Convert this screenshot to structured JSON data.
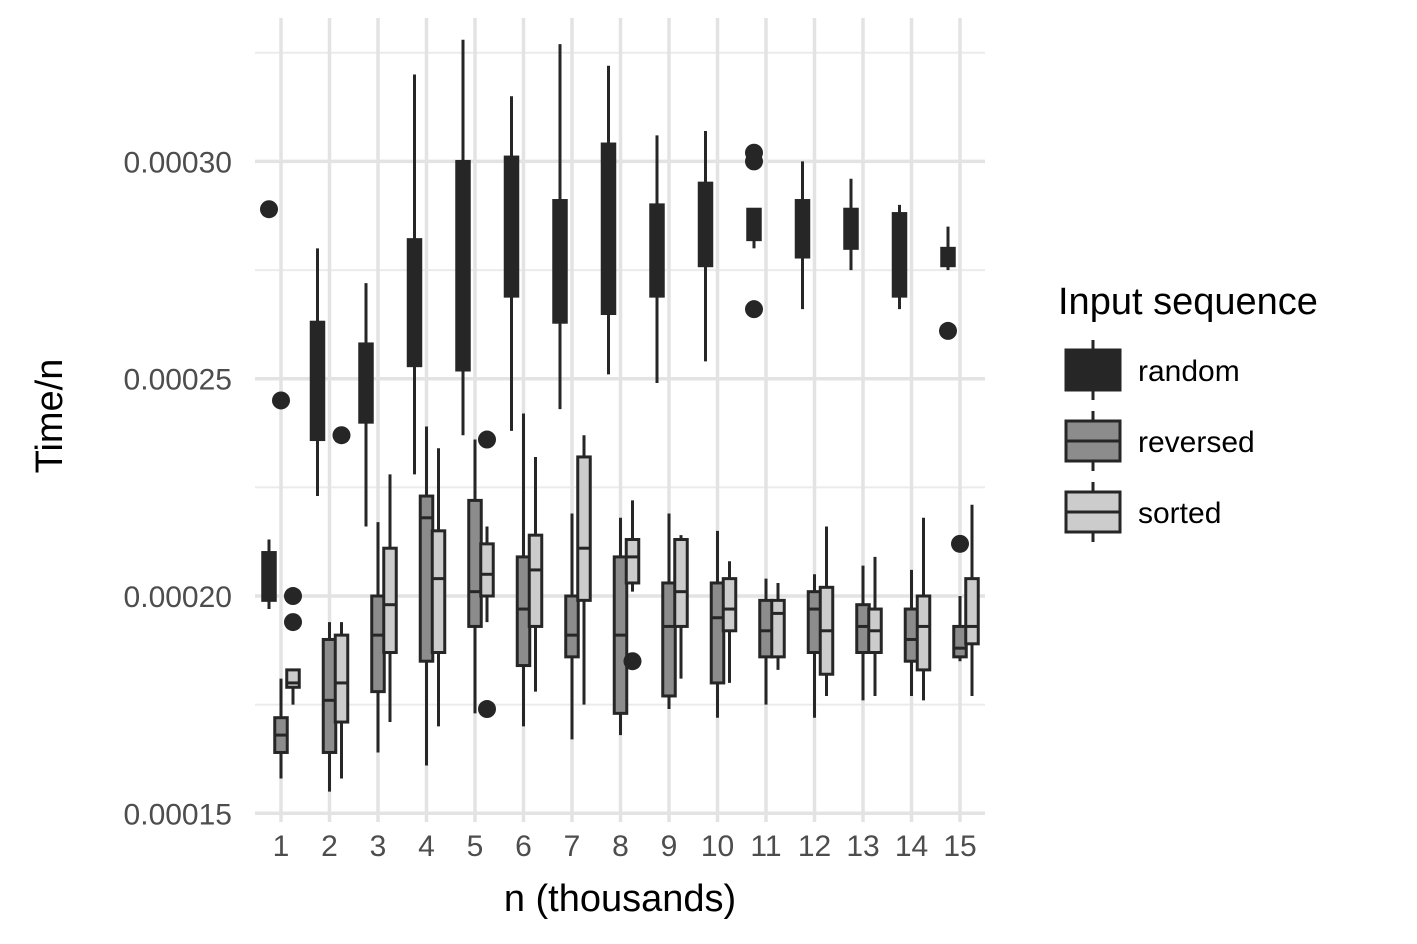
{
  "chart_data": {
    "type": "boxplot",
    "xlabel": "n (thousands)",
    "ylabel": "Time/n",
    "categories": [
      "1",
      "2",
      "3",
      "4",
      "5",
      "6",
      "7",
      "8",
      "9",
      "10",
      "11",
      "12",
      "13",
      "14",
      "15"
    ],
    "ylim": [
      0.000148,
      0.000333
    ],
    "yticks": [
      0.00015,
      0.0002,
      0.00025,
      0.0003
    ],
    "ytick_labels": [
      "0.00015",
      "0.00020",
      "0.00025",
      "0.00030"
    ],
    "grid": true,
    "legend": {
      "title": "Input sequence",
      "position": "right"
    },
    "series": [
      {
        "name": "random",
        "color": "#262626",
        "boxes": [
          {
            "lower_whisker": 0.000197,
            "q1": 0.000199,
            "median": 0.000205,
            "q3": 0.00021,
            "upper_whisker": 0.000213,
            "outliers": [
              0.000289
            ]
          },
          {
            "lower_whisker": 0.000223,
            "q1": 0.000236,
            "median": 0.000255,
            "q3": 0.000263,
            "upper_whisker": 0.00028,
            "outliers": []
          },
          {
            "lower_whisker": 0.000216,
            "q1": 0.00024,
            "median": 0.000251,
            "q3": 0.000258,
            "upper_whisker": 0.000272,
            "outliers": []
          },
          {
            "lower_whisker": 0.000228,
            "q1": 0.000253,
            "median": 0.000269,
            "q3": 0.000282,
            "upper_whisker": 0.00032,
            "outliers": []
          },
          {
            "lower_whisker": 0.000237,
            "q1": 0.000252,
            "median": 0.000276,
            "q3": 0.0003,
            "upper_whisker": 0.000328,
            "outliers": []
          },
          {
            "lower_whisker": 0.000238,
            "q1": 0.000269,
            "median": 0.000283,
            "q3": 0.000301,
            "upper_whisker": 0.000315,
            "outliers": []
          },
          {
            "lower_whisker": 0.000243,
            "q1": 0.000263,
            "median": 0.00028,
            "q3": 0.000291,
            "upper_whisker": 0.000327,
            "outliers": []
          },
          {
            "lower_whisker": 0.000251,
            "q1": 0.000265,
            "median": 0.000292,
            "q3": 0.000304,
            "upper_whisker": 0.000322,
            "outliers": []
          },
          {
            "lower_whisker": 0.000249,
            "q1": 0.000269,
            "median": 0.000277,
            "q3": 0.00029,
            "upper_whisker": 0.000306,
            "outliers": []
          },
          {
            "lower_whisker": 0.000254,
            "q1": 0.000276,
            "median": 0.000285,
            "q3": 0.000295,
            "upper_whisker": 0.000307,
            "outliers": []
          },
          {
            "lower_whisker": 0.00028,
            "q1": 0.000282,
            "median": 0.000286,
            "q3": 0.000289,
            "upper_whisker": 0.000289,
            "outliers": [
              0.000302,
              0.0003,
              0.000266
            ]
          },
          {
            "lower_whisker": 0.000266,
            "q1": 0.000278,
            "median": 0.000285,
            "q3": 0.000291,
            "upper_whisker": 0.0003,
            "outliers": []
          },
          {
            "lower_whisker": 0.000275,
            "q1": 0.00028,
            "median": 0.000284,
            "q3": 0.000289,
            "upper_whisker": 0.000296,
            "outliers": []
          },
          {
            "lower_whisker": 0.000266,
            "q1": 0.000269,
            "median": 0.000279,
            "q3": 0.000288,
            "upper_whisker": 0.00029,
            "outliers": []
          },
          {
            "lower_whisker": 0.000275,
            "q1": 0.000276,
            "median": 0.000278,
            "q3": 0.00028,
            "upper_whisker": 0.000285,
            "outliers": [
              0.000261
            ]
          }
        ]
      },
      {
        "name": "reversed",
        "color": "#8c8c8c",
        "boxes": [
          {
            "lower_whisker": 0.000158,
            "q1": 0.000164,
            "median": 0.000168,
            "q3": 0.000172,
            "upper_whisker": 0.000181,
            "outliers": [
              0.000245
            ]
          },
          {
            "lower_whisker": 0.000155,
            "q1": 0.000164,
            "median": 0.000176,
            "q3": 0.00019,
            "upper_whisker": 0.000194,
            "outliers": []
          },
          {
            "lower_whisker": 0.000164,
            "q1": 0.000178,
            "median": 0.000191,
            "q3": 0.0002,
            "upper_whisker": 0.000217,
            "outliers": []
          },
          {
            "lower_whisker": 0.000161,
            "q1": 0.000185,
            "median": 0.000218,
            "q3": 0.000223,
            "upper_whisker": 0.000239,
            "outliers": []
          },
          {
            "lower_whisker": 0.000173,
            "q1": 0.000193,
            "median": 0.000201,
            "q3": 0.000222,
            "upper_whisker": 0.000236,
            "outliers": []
          },
          {
            "lower_whisker": 0.00017,
            "q1": 0.000184,
            "median": 0.000197,
            "q3": 0.000209,
            "upper_whisker": 0.000242,
            "outliers": []
          },
          {
            "lower_whisker": 0.000167,
            "q1": 0.000186,
            "median": 0.000191,
            "q3": 0.0002,
            "upper_whisker": 0.000219,
            "outliers": []
          },
          {
            "lower_whisker": 0.000168,
            "q1": 0.000173,
            "median": 0.000191,
            "q3": 0.000209,
            "upper_whisker": 0.000218,
            "outliers": []
          },
          {
            "lower_whisker": 0.000174,
            "q1": 0.000177,
            "median": 0.000193,
            "q3": 0.000203,
            "upper_whisker": 0.000219,
            "outliers": []
          },
          {
            "lower_whisker": 0.000172,
            "q1": 0.00018,
            "median": 0.000195,
            "q3": 0.000203,
            "upper_whisker": 0.000215,
            "outliers": []
          },
          {
            "lower_whisker": 0.000175,
            "q1": 0.000186,
            "median": 0.000192,
            "q3": 0.000199,
            "upper_whisker": 0.000204,
            "outliers": []
          },
          {
            "lower_whisker": 0.000172,
            "q1": 0.000187,
            "median": 0.000197,
            "q3": 0.000201,
            "upper_whisker": 0.000205,
            "outliers": []
          },
          {
            "lower_whisker": 0.000176,
            "q1": 0.000187,
            "median": 0.000193,
            "q3": 0.000198,
            "upper_whisker": 0.000207,
            "outliers": []
          },
          {
            "lower_whisker": 0.000177,
            "q1": 0.000185,
            "median": 0.00019,
            "q3": 0.000197,
            "upper_whisker": 0.000206,
            "outliers": []
          },
          {
            "lower_whisker": 0.000185,
            "q1": 0.000186,
            "median": 0.000188,
            "q3": 0.000193,
            "upper_whisker": 0.0002,
            "outliers": [
              0.000212
            ]
          }
        ]
      },
      {
        "name": "sorted",
        "color": "#cccccc",
        "boxes": [
          {
            "lower_whisker": 0.000175,
            "q1": 0.000179,
            "median": 0.00018,
            "q3": 0.000183,
            "upper_whisker": 0.000183,
            "outliers": [
              0.0002,
              0.000194
            ]
          },
          {
            "lower_whisker": 0.000158,
            "q1": 0.000171,
            "median": 0.00018,
            "q3": 0.000191,
            "upper_whisker": 0.000194,
            "outliers": [
              0.000237
            ]
          },
          {
            "lower_whisker": 0.000171,
            "q1": 0.000187,
            "median": 0.000198,
            "q3": 0.000211,
            "upper_whisker": 0.000228,
            "outliers": []
          },
          {
            "lower_whisker": 0.00017,
            "q1": 0.000187,
            "median": 0.000204,
            "q3": 0.000215,
            "upper_whisker": 0.000234,
            "outliers": []
          },
          {
            "lower_whisker": 0.000194,
            "q1": 0.0002,
            "median": 0.000205,
            "q3": 0.000212,
            "upper_whisker": 0.000216,
            "outliers": [
              0.000236,
              0.000174
            ]
          },
          {
            "lower_whisker": 0.000178,
            "q1": 0.000193,
            "median": 0.000206,
            "q3": 0.000214,
            "upper_whisker": 0.000232,
            "outliers": []
          },
          {
            "lower_whisker": 0.000175,
            "q1": 0.000199,
            "median": 0.000211,
            "q3": 0.000232,
            "upper_whisker": 0.000237,
            "outliers": []
          },
          {
            "lower_whisker": 0.000201,
            "q1": 0.000203,
            "median": 0.000209,
            "q3": 0.000213,
            "upper_whisker": 0.000222,
            "outliers": [
              0.000185
            ]
          },
          {
            "lower_whisker": 0.000181,
            "q1": 0.000193,
            "median": 0.000201,
            "q3": 0.000213,
            "upper_whisker": 0.000214,
            "outliers": []
          },
          {
            "lower_whisker": 0.00018,
            "q1": 0.000192,
            "median": 0.000197,
            "q3": 0.000204,
            "upper_whisker": 0.000208,
            "outliers": []
          },
          {
            "lower_whisker": 0.000183,
            "q1": 0.000186,
            "median": 0.000196,
            "q3": 0.000199,
            "upper_whisker": 0.000203,
            "outliers": []
          },
          {
            "lower_whisker": 0.000177,
            "q1": 0.000182,
            "median": 0.000192,
            "q3": 0.000202,
            "upper_whisker": 0.000216,
            "outliers": []
          },
          {
            "lower_whisker": 0.000177,
            "q1": 0.000187,
            "median": 0.000192,
            "q3": 0.000197,
            "upper_whisker": 0.000209,
            "outliers": []
          },
          {
            "lower_whisker": 0.000176,
            "q1": 0.000183,
            "median": 0.000193,
            "q3": 0.0002,
            "upper_whisker": 0.000218,
            "outliers": []
          },
          {
            "lower_whisker": 0.000177,
            "q1": 0.000189,
            "median": 0.000193,
            "q3": 0.000204,
            "upper_whisker": 0.000221,
            "outliers": []
          }
        ]
      }
    ]
  }
}
